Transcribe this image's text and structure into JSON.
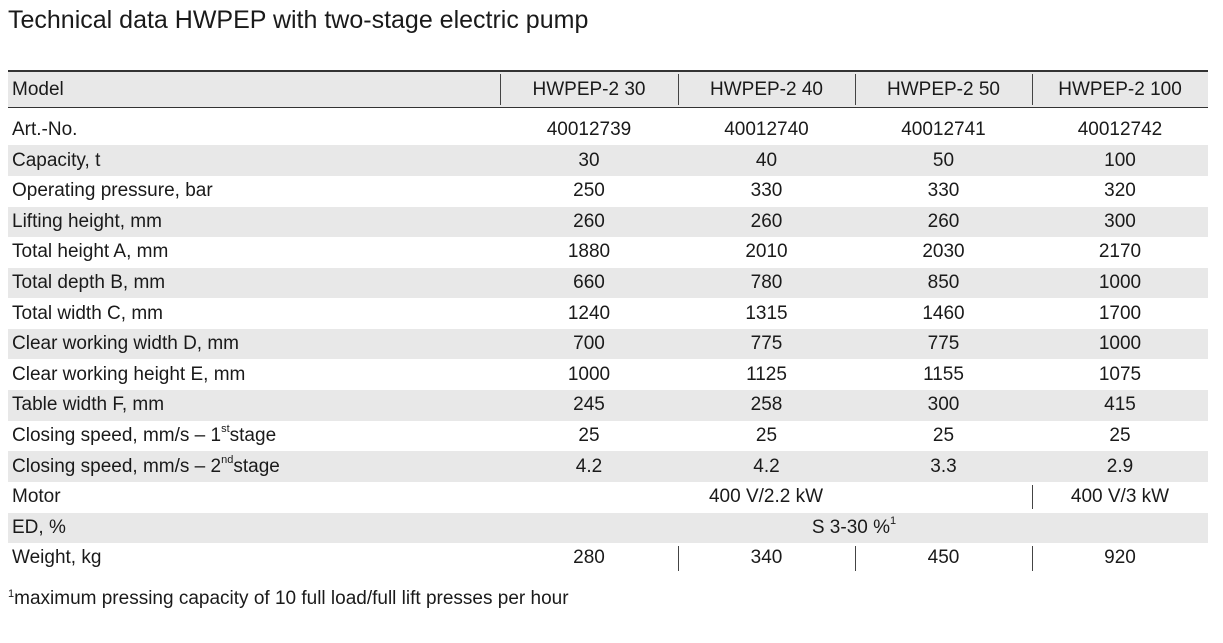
{
  "title": "Technical data HWPEP with two-stage electric pump",
  "table": {
    "header": [
      "Model",
      "HWPEP-2 30",
      "HWPEP-2 40",
      "HWPEP-2 50",
      "HWPEP-2 100"
    ],
    "rows": [
      {
        "label": "Art.-No.",
        "cells": [
          40012739,
          40012740,
          40012741,
          40012742
        ]
      },
      {
        "label": "Capacity, t",
        "cells": [
          30,
          40,
          50,
          100
        ]
      },
      {
        "label": "Operating pressure, bar",
        "cells": [
          250,
          330,
          330,
          320
        ]
      },
      {
        "label": "Lifting height, mm",
        "cells": [
          260,
          260,
          260,
          300
        ]
      },
      {
        "label": "Total height A, mm",
        "cells": [
          1880,
          2010,
          2030,
          2170
        ]
      },
      {
        "label": "Total depth B, mm",
        "cells": [
          660,
          780,
          850,
          1000
        ]
      },
      {
        "label": "Total width C, mm",
        "cells": [
          1240,
          1315,
          1460,
          1700
        ]
      },
      {
        "label": "Clear working width D, mm",
        "cells": [
          700,
          775,
          775,
          1000
        ]
      },
      {
        "label": "Clear working height E, mm",
        "cells": [
          1000,
          1125,
          1155,
          1075
        ]
      },
      {
        "label": "Table width F, mm",
        "cells": [
          245,
          258,
          300,
          415
        ]
      },
      {
        "label": {
          "text": "Closing speed, mm/s – 1",
          "sup": "st",
          "tail": " stage"
        },
        "cells": [
          25,
          25,
          25,
          25
        ]
      },
      {
        "label": {
          "text": "Closing speed, mm/s – 2",
          "sup": "nd",
          "tail": " stage"
        },
        "cells": [
          4.2,
          4.2,
          3.3,
          2.9
        ]
      },
      {
        "label": "Motor",
        "cells": [
          "400 V/2.2 kW",
          "400 V/3 kW"
        ]
      },
      {
        "label": "ED, %",
        "cells": [
          {
            "text": "S 3-30 %",
            "sup": "1"
          }
        ]
      },
      {
        "label": "Weight, kg",
        "cells": [
          280,
          340,
          450,
          920
        ]
      }
    ]
  },
  "footnote": {
    "marker": "1",
    "text": "maximum pressing capacity of 10 full load/full lift presses per hour"
  }
}
